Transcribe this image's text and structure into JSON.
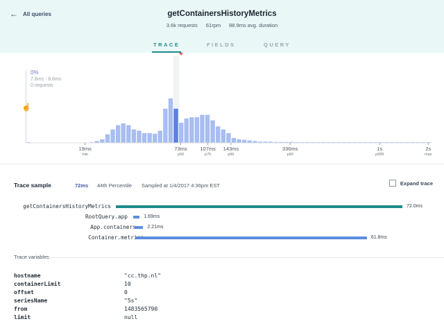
{
  "header": {
    "back_label": "All queries",
    "query_name": "getContainersHistoryMetrics",
    "stats": [
      "3.6k requests",
      "61rpm",
      "88.9ms avg. duration"
    ]
  },
  "tabs": [
    "TRACE",
    "FIELDS",
    "QUERY"
  ],
  "active_tab": "TRACE",
  "histogram": {
    "hover": {
      "percent": "0%",
      "range": "7.8ms - 8.6ms",
      "requests": "0 requests"
    },
    "bar_color": "#a8bdf0",
    "highlight_color": "#5b7fdc",
    "relative_heights": [
      0.005,
      0,
      0,
      0,
      0,
      0,
      0,
      0,
      0,
      0,
      0,
      0,
      0.01,
      0.03,
      0.06,
      0.14,
      0.22,
      0.29,
      0.32,
      0.29,
      0.22,
      0.2,
      0.16,
      0.16,
      0.15,
      0.2,
      0.56,
      0.73,
      0.56,
      0.33,
      0.4,
      0.42,
      0.42,
      0.46,
      0.46,
      0.37,
      0.27,
      0.22,
      0.16,
      0.08,
      0.06,
      0.05,
      0.04,
      0.03,
      0.02,
      0.02,
      0.02,
      0.015,
      0.015,
      0.015,
      0.015,
      0.01,
      0.01,
      0.01,
      0.005,
      0.005,
      0.005,
      0.005,
      0.005,
      0.005,
      0.005,
      0.005,
      0.005,
      0.005,
      0.005,
      0.003,
      0.003,
      0.003,
      0.003,
      0.003,
      0.003,
      0.003,
      0.003,
      0.003,
      0.003,
      0.003,
      0.003
    ],
    "highlight_index": 28,
    "axis_ticks": [
      {
        "label": "19ms",
        "sub": "min",
        "at": 0.145
      },
      {
        "label": "73ms",
        "sub": "p50",
        "at": 0.381
      },
      {
        "label": "107ms",
        "sub": "p75",
        "at": 0.448
      },
      {
        "label": "143ms",
        "sub": "p90",
        "at": 0.505
      },
      {
        "label": "336ms",
        "sub": "p99",
        "at": 0.651
      },
      {
        "label": "1s",
        "sub": "p999",
        "at": 0.872
      },
      {
        "label": "2s",
        "sub": "max",
        "at": 0.992
      }
    ]
  },
  "trace_sample": {
    "title": "Trace sample",
    "duration": "72ms",
    "percentile": "44th Percentile",
    "sampled": "Sampled at 1/4/2017 4:36pm EST",
    "expand_label": "Expand trace",
    "expanded": false,
    "total_ms": 72.0,
    "rows": [
      {
        "name": "getContainersHistoryMetrics",
        "duration": "72.0ms",
        "start_ms": 0,
        "ms": 72.0,
        "color": "#1e8c89"
      },
      {
        "name": "RootQuery.app",
        "duration": "1.69ms",
        "start_ms": 0.2,
        "ms": 1.69,
        "color": "#5b8de0"
      },
      {
        "name": "App.containers",
        "duration": "2.21ms",
        "start_ms": 0.6,
        "ms": 2.21,
        "color": "#5b8de0"
      },
      {
        "name": "Container.metrics",
        "duration": "61.8ms",
        "start_ms": 0.8,
        "ms": 61.8,
        "color": "#5b8de0"
      }
    ]
  },
  "trace_variables": {
    "title": "Trace variables",
    "items": [
      {
        "key": "hostname",
        "value": "\"cc.thp.nl\""
      },
      {
        "key": "containerLimit",
        "value": "10"
      },
      {
        "key": "offset",
        "value": "0"
      },
      {
        "key": "seriesName",
        "value": "\"5s\""
      },
      {
        "key": "from",
        "value": "1483565790"
      },
      {
        "key": "limit",
        "value": "null"
      }
    ]
  }
}
